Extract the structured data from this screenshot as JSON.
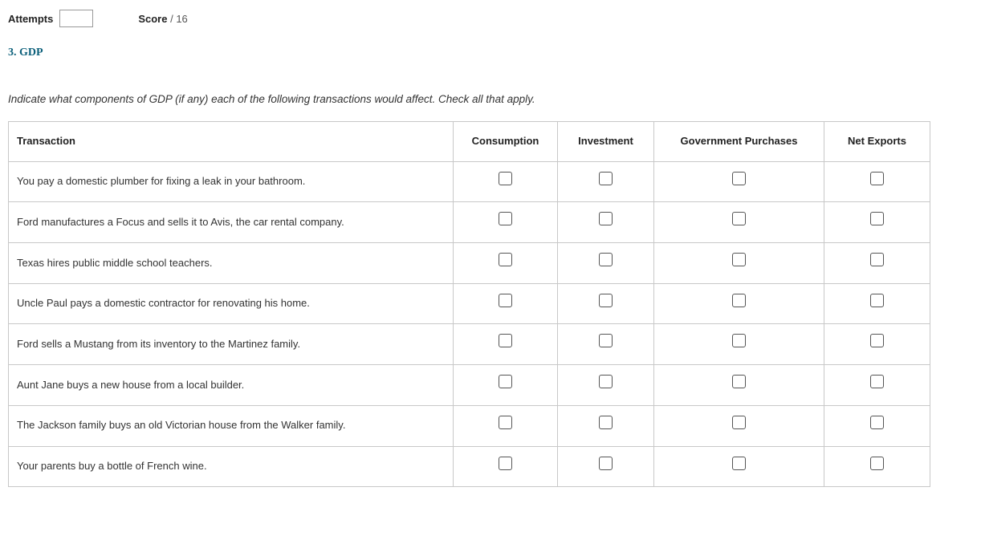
{
  "header": {
    "attempts_label": "Attempts",
    "attempts_value": "",
    "score_label": "Score",
    "score_sep": " / ",
    "score_max": "16"
  },
  "question": {
    "number_title": "3. GDP",
    "prompt": "Indicate what components of GDP (if any) each of the following transactions would affect. Check all that apply."
  },
  "table": {
    "headers": {
      "transaction": "Transaction",
      "consumption": "Consumption",
      "investment": "Investment",
      "government": "Government Purchases",
      "netexports": "Net Exports"
    },
    "rows": [
      {
        "text": "You pay a domestic plumber for fixing a leak in your bathroom."
      },
      {
        "text": "Ford manufactures a Focus and sells it to Avis, the car rental company."
      },
      {
        "text": "Texas hires public middle school teachers."
      },
      {
        "text": "Uncle Paul pays a domestic contractor for renovating his home."
      },
      {
        "text": "Ford sells a Mustang from its inventory to the Martinez family."
      },
      {
        "text": "Aunt Jane buys a new house from a local builder."
      },
      {
        "text": "The Jackson family buys an old Victorian house from the Walker family."
      },
      {
        "text": "Your parents buy a bottle of French wine."
      }
    ]
  }
}
